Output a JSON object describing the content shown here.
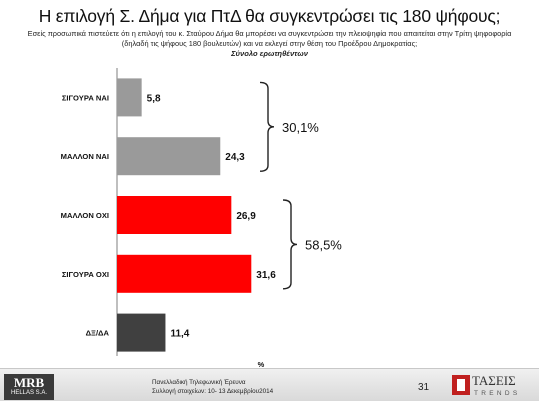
{
  "header": {
    "title": "Η επιλογή Σ. Δήμα για ΠτΔ θα συγκεντρώσει τις 180 ψήφους;",
    "subtitle": "Εσείς προσωπικά πιστεύετε ότι η επιλογή του κ. Σταύρου Δήμα θα μπορέσει να συγκεντρώσει την πλειοψηφία που απαιτείται στην Τρίτη ψηφοφορία (δηλαδή τις ψήφους 180 βουλευτών) και να εκλεγεί στην θέση του Προέδρου Δημοκρατίας;",
    "base": "Σύνολο ερωτηθέντων"
  },
  "chart_data": {
    "type": "bar",
    "orientation": "horizontal",
    "categories": [
      "ΣΙΓΟΥΡΑ ΝΑΙ",
      "ΜΑΛΛΟΝ ΝΑΙ",
      "ΜΑΛΛΟΝ ΟΧΙ",
      "ΣΙΓΟΥΡΑ ΟΧΙ",
      "ΔΞ/ΔΑ"
    ],
    "values": [
      5.8,
      24.3,
      26.9,
      31.6,
      11.4
    ],
    "value_labels": [
      "5,8",
      "24,3",
      "26,9",
      "31,6",
      "11,4"
    ],
    "colors": [
      "#9a9a9a",
      "#9a9a9a",
      "#ff0000",
      "#ff0000",
      "#404040"
    ],
    "xlabel": "%",
    "xlim": [
      0,
      100
    ],
    "grid": false,
    "annotations": [
      {
        "label": "30,1%",
        "groups": [
          0,
          1
        ]
      },
      {
        "label": "58,5%",
        "groups": [
          2,
          3
        ]
      }
    ]
  },
  "footer": {
    "logo_main": "MRB",
    "logo_small": "HELLAS S.A.",
    "survey_line1": "Πανελλαδική Τηλεφωνική Έρευνα",
    "survey_line2": "Συλλογή στοιχείων: 10- 13 Δεκεμβρίου2014",
    "page_number": "31",
    "brand_name": "ΤΑΣΕΙΣ",
    "brand_sub": "TRENDS"
  }
}
